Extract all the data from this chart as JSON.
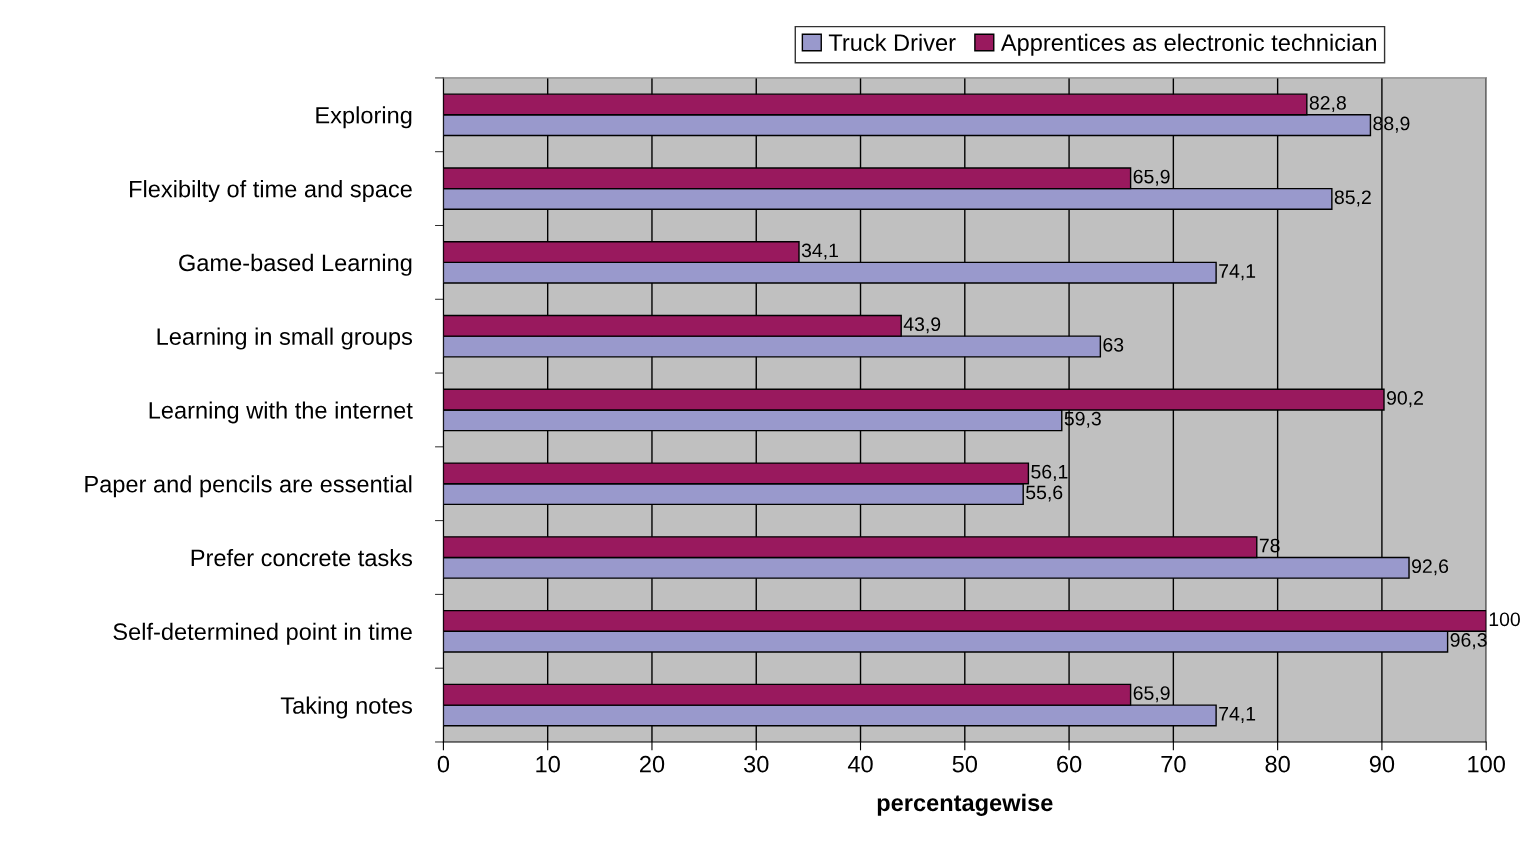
{
  "chart_data": {
    "type": "bar",
    "orientation": "horizontal",
    "xlabel": "percentagewise",
    "categories": [
      "Exploring",
      "Flexibilty of time and space",
      "Game-based Learning",
      "Learning in small groups",
      "Learning with the internet",
      "Paper and pencils are essential",
      "Prefer concrete tasks",
      "Self-determined point in time",
      "Taking notes"
    ],
    "series": [
      {
        "name": "Truck Driver",
        "color": "#9999cc",
        "values": [
          88.9,
          85.2,
          74.1,
          63,
          59.3,
          55.6,
          92.6,
          96.3,
          74.1
        ],
        "value_labels": [
          "88,9",
          "85,2",
          "74,1",
          "63",
          "59,3",
          "55,6",
          "92,6",
          "96,3",
          "74,1"
        ]
      },
      {
        "name": "Apprentices as electronic technician",
        "color": "#99195e",
        "values": [
          82.8,
          65.9,
          34.1,
          43.9,
          90.2,
          56.1,
          78,
          100,
          65.9
        ],
        "value_labels": [
          "82,8",
          "65,9",
          "34,1",
          "43,9",
          "90,2",
          "56,1",
          "78",
          "100",
          "65,9"
        ]
      }
    ],
    "xlim": [
      0,
      100
    ],
    "xticks": [
      0,
      10,
      20,
      30,
      40,
      50,
      60,
      70,
      80,
      90,
      100
    ],
    "grid": "x",
    "legend": "top"
  }
}
